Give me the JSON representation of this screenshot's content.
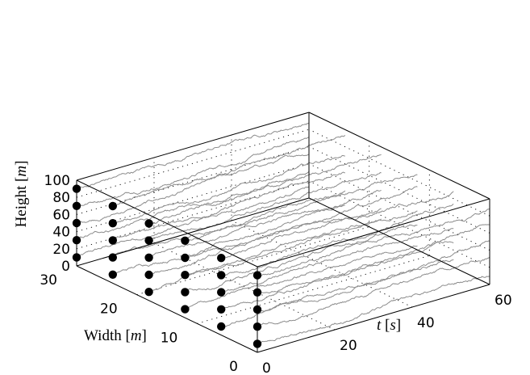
{
  "chart_data": {
    "type": "line",
    "title": "",
    "axes": {
      "t": {
        "label_var": "t",
        "label_prefix": "",
        "label_unit": "s",
        "lim": [
          0,
          60
        ],
        "ticks": [
          0,
          20,
          40,
          60
        ]
      },
      "width": {
        "label_prefix": "Width ",
        "label_unit": "m",
        "lim": [
          0,
          30
        ],
        "ticks": [
          0,
          10,
          20,
          30
        ]
      },
      "height": {
        "label_prefix": "Height ",
        "label_unit": "m",
        "lim": [
          0,
          100
        ],
        "ticks": [
          0,
          20,
          40,
          60,
          80,
          100
        ]
      }
    },
    "grid": true,
    "colors": {
      "trace": "#8c8c8c",
      "marker": "#000000"
    },
    "sensor_points": [
      {
        "w": 30,
        "h": [
          10,
          30,
          50,
          70,
          90
        ]
      },
      {
        "w": 24,
        "h": [
          10,
          30,
          50,
          70,
          90
        ]
      },
      {
        "w": 18,
        "h": [
          10,
          30,
          50,
          70,
          90
        ]
      },
      {
        "w": 12,
        "h": [
          10,
          30,
          50,
          70,
          90
        ]
      },
      {
        "w": 6,
        "h": [
          10,
          30,
          50,
          70,
          90
        ]
      },
      {
        "w": 0,
        "h": [
          10,
          30,
          50,
          70,
          90
        ]
      }
    ],
    "series_description": "Each sensor point has a noisy time series (wind-like fluctuation) extending along t from 0 to 60 s at roughly the sensor's height."
  }
}
